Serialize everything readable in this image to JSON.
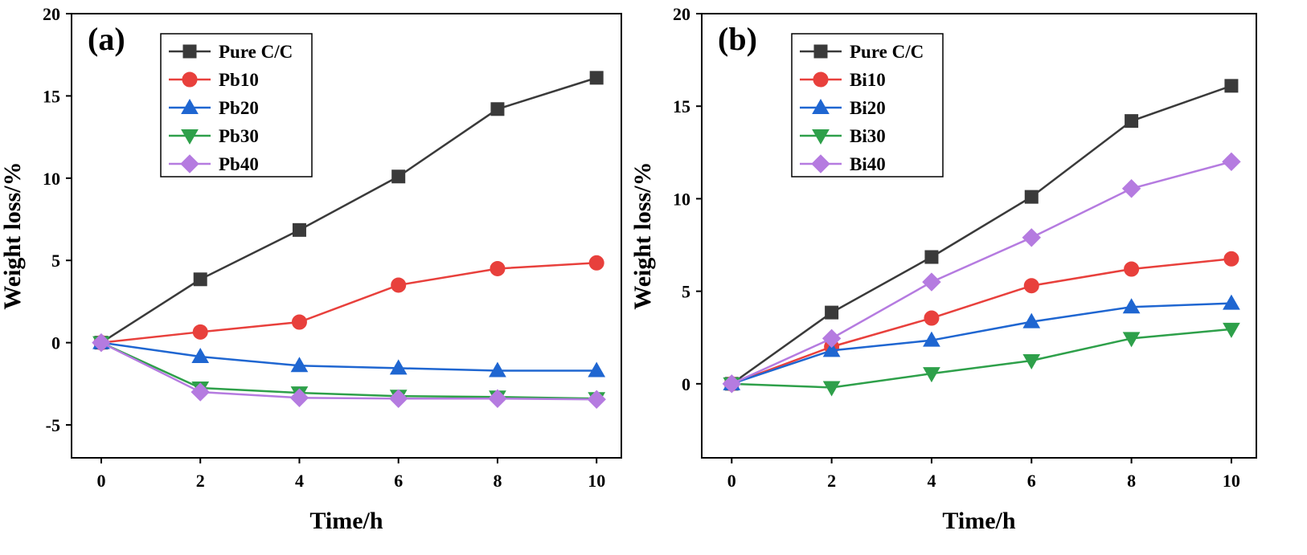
{
  "chart_data": [
    {
      "type": "line",
      "panel_label": "(a)",
      "xlabel": "Time/h",
      "ylabel": "Weight loss/%",
      "xlim": [
        -0.6,
        10.5
      ],
      "ylim": [
        -7,
        20
      ],
      "xticks": [
        0,
        2,
        4,
        6,
        8,
        10
      ],
      "yticks": [
        -5,
        0,
        5,
        10,
        15,
        20
      ],
      "x": [
        0,
        2,
        4,
        6,
        8,
        10
      ],
      "legend_position": "top-left",
      "series": [
        {
          "name": "Pure C/C",
          "color": "#3a3a3a",
          "marker": "square",
          "values": [
            0,
            3.85,
            6.85,
            10.1,
            14.2,
            16.1
          ]
        },
        {
          "name": "Pb10",
          "color": "#e8403c",
          "marker": "circle",
          "values": [
            0,
            0.65,
            1.25,
            3.5,
            4.5,
            4.85
          ]
        },
        {
          "name": "Pb20",
          "color": "#1f66d1",
          "marker": "triangle-up",
          "values": [
            0,
            -0.85,
            -1.4,
            -1.55,
            -1.7,
            -1.7
          ]
        },
        {
          "name": "Pb30",
          "color": "#2ea04a",
          "marker": "triangle-down",
          "values": [
            0,
            -2.75,
            -3.05,
            -3.25,
            -3.3,
            -3.4
          ]
        },
        {
          "name": "Pb40",
          "color": "#b57be0",
          "marker": "diamond",
          "values": [
            0,
            -3.0,
            -3.35,
            -3.4,
            -3.4,
            -3.45
          ]
        }
      ]
    },
    {
      "type": "line",
      "panel_label": "(b)",
      "xlabel": "Time/h",
      "ylabel": "Weight loss/%",
      "xlim": [
        -0.6,
        10.5
      ],
      "ylim": [
        -4,
        20
      ],
      "xticks": [
        0,
        2,
        4,
        6,
        8,
        10
      ],
      "yticks": [
        0,
        5,
        10,
        15,
        20
      ],
      "x": [
        0,
        2,
        4,
        6,
        8,
        10
      ],
      "legend_position": "top-left",
      "series": [
        {
          "name": "Pure C/C",
          "color": "#3a3a3a",
          "marker": "square",
          "values": [
            0,
            3.85,
            6.85,
            10.1,
            14.2,
            16.1
          ]
        },
        {
          "name": "Bi10",
          "color": "#e8403c",
          "marker": "circle",
          "values": [
            0,
            2.0,
            3.55,
            5.3,
            6.2,
            6.75
          ]
        },
        {
          "name": "Bi20",
          "color": "#1f66d1",
          "marker": "triangle-up",
          "values": [
            0,
            1.8,
            2.35,
            3.35,
            4.15,
            4.35
          ]
        },
        {
          "name": "Bi30",
          "color": "#2ea04a",
          "marker": "triangle-down",
          "values": [
            0,
            -0.2,
            0.55,
            1.25,
            2.45,
            2.95
          ]
        },
        {
          "name": "Bi40",
          "color": "#b57be0",
          "marker": "diamond",
          "values": [
            0,
            2.45,
            5.5,
            7.9,
            10.55,
            12.0
          ]
        }
      ]
    }
  ]
}
